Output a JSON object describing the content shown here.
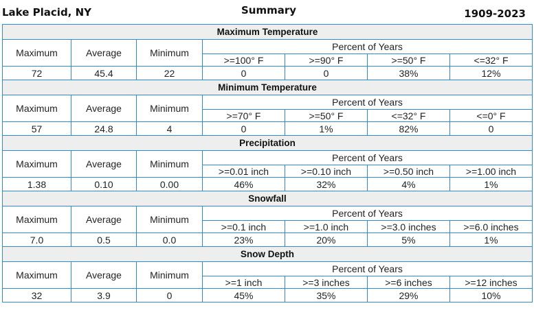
{
  "header": {
    "location": "Lake Placid, NY",
    "title": "Summary",
    "years": "1909-2023"
  },
  "column_headers": {
    "maximum": "Maximum",
    "average": "Average",
    "minimum": "Minimum",
    "percent_of_years": "Percent of Years"
  },
  "sections": [
    {
      "title": "Maximum Temperature",
      "thresholds": [
        ">=100° F",
        ">=90° F",
        ">=50° F",
        "<=32° F"
      ],
      "values": {
        "maximum": "72",
        "average": "45.4",
        "minimum": "22",
        "percents": [
          "0",
          "0",
          "38%",
          "12%"
        ]
      }
    },
    {
      "title": "Minimum Temperature",
      "thresholds": [
        ">=70° F",
        ">=50° F",
        "<=32° F",
        "<=0° F"
      ],
      "values": {
        "maximum": "57",
        "average": "24.8",
        "minimum": "4",
        "percents": [
          "0",
          "1%",
          "82%",
          "0"
        ]
      }
    },
    {
      "title": "Precipitation",
      "thresholds": [
        ">=0.01 inch",
        ">=0.10 inch",
        ">=0.50 inch",
        ">=1.00 inch"
      ],
      "values": {
        "maximum": "1.38",
        "average": "0.10",
        "minimum": "0.00",
        "percents": [
          "46%",
          "32%",
          "4%",
          "1%"
        ]
      }
    },
    {
      "title": "Snowfall",
      "thresholds": [
        ">=0.1 inch",
        ">=1.0 inch",
        ">=3.0 inches",
        ">=6.0 inches"
      ],
      "values": {
        "maximum": "7.0",
        "average": "0.5",
        "minimum": "0.0",
        "percents": [
          "23%",
          "20%",
          "5%",
          "1%"
        ]
      }
    },
    {
      "title": "Snow Depth",
      "thresholds": [
        ">=1 inch",
        ">=3 inches",
        ">=6 inches",
        ">=12 inches"
      ],
      "values": {
        "maximum": "32",
        "average": "3.9",
        "minimum": "0",
        "percents": [
          "45%",
          "35%",
          "29%",
          "10%"
        ]
      }
    }
  ]
}
